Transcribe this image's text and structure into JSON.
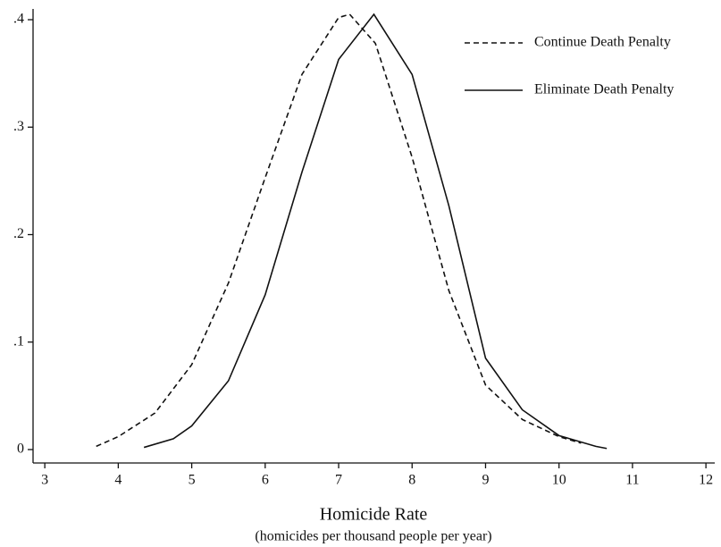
{
  "chart_data": {
    "type": "line",
    "xlabel": "Homicide Rate",
    "xlabel_subtitle": "(homicides per thousand people per year)",
    "xlim": [
      2.84,
      12.12
    ],
    "xticks": [
      3,
      4,
      5,
      6,
      7,
      8,
      9,
      10,
      11,
      12
    ],
    "ylim": [
      -0.0125,
      0.41
    ],
    "yticks": [
      0,
      {
        "value": 0.1,
        "label": ".1"
      },
      {
        "value": 0.2,
        "label": ".2"
      },
      {
        "value": 0.3,
        "label": ".3"
      },
      {
        "value": 0.4,
        "label": ".4"
      }
    ],
    "legend": "top-right",
    "series": [
      {
        "name": "Continue Death Penalty",
        "color": "#111111",
        "dash": true,
        "x": [
          3.7,
          4.0,
          4.5,
          5.0,
          5.5,
          6.0,
          6.5,
          7.0,
          7.15,
          7.5,
          8.0,
          8.5,
          9.0,
          9.5,
          10.0,
          10.3
        ],
        "values": [
          0.003,
          0.012,
          0.034,
          0.079,
          0.155,
          0.253,
          0.349,
          0.402,
          0.405,
          0.378,
          0.272,
          0.148,
          0.06,
          0.028,
          0.012,
          0.006
        ]
      },
      {
        "name": "Eliminate Death Penalty",
        "color": "#111111",
        "dash": false,
        "x": [
          4.35,
          4.75,
          5.0,
          5.5,
          6.0,
          6.5,
          7.0,
          7.48,
          8.0,
          8.5,
          9.0,
          9.5,
          10.0,
          10.5,
          10.65
        ],
        "values": [
          0.002,
          0.01,
          0.022,
          0.064,
          0.144,
          0.258,
          0.363,
          0.405,
          0.349,
          0.227,
          0.085,
          0.037,
          0.013,
          0.003,
          0.001
        ]
      }
    ]
  }
}
